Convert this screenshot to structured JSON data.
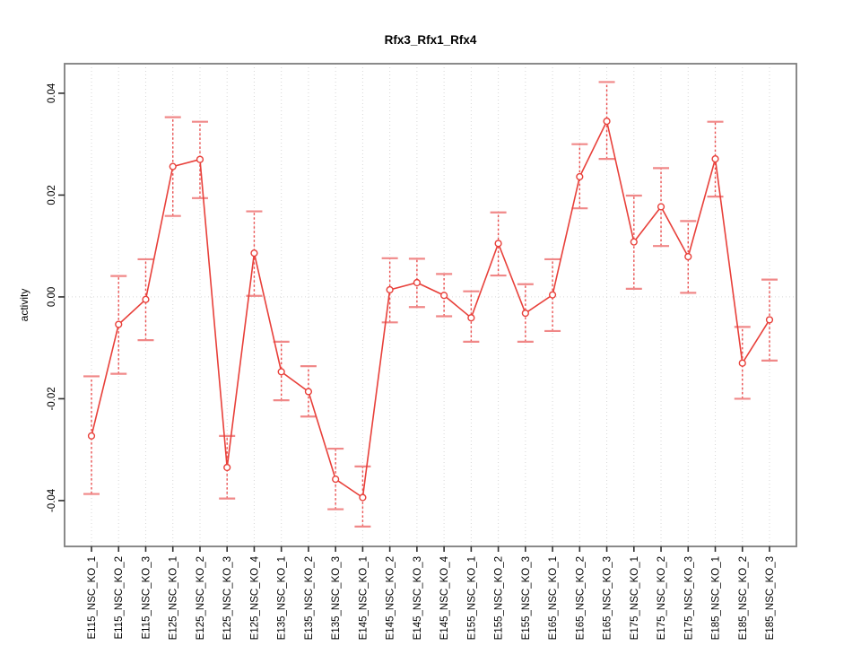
{
  "chart_data": {
    "type": "line",
    "title": "Rfx3_Rfx1_Rfx4",
    "ylabel": "activity",
    "xlabel": "",
    "marker": "open-circle",
    "error_bars": true,
    "legend": "none",
    "grid": "vertical dotted gridline per category plus dotted horizontal line at 0",
    "ylim": [
      -0.049,
      0.0458
    ],
    "yticks": [
      -0.04,
      -0.02,
      0,
      0.02,
      0.04
    ],
    "categories": [
      "E115_NSC_KO_1",
      "E115_NSC_KO_2",
      "E115_NSC_KO_3",
      "E125_NSC_KO_1",
      "E125_NSC_KO_2",
      "E125_NSC_KO_3",
      "E125_NSC_KO_4",
      "E135_NSC_KO_1",
      "E135_NSC_KO_2",
      "E135_NSC_KO_3",
      "E145_NSC_KO_1",
      "E145_NSC_KO_2",
      "E145_NSC_KO_3",
      "E145_NSC_KO_4",
      "E155_NSC_KO_1",
      "E155_NSC_KO_2",
      "E155_NSC_KO_3",
      "E165_NSC_KO_1",
      "E165_NSC_KO_2",
      "E165_NSC_KO_3",
      "E175_NSC_KO_1",
      "E175_NSC_KO_2",
      "E175_NSC_KO_3",
      "E185_NSC_KO_1",
      "E185_NSC_KO_2",
      "E185_NSC_KO_3"
    ],
    "series": [
      {
        "name": "activity",
        "values": [
          -0.0273,
          -0.0054,
          -0.0005,
          0.0256,
          0.027,
          -0.0335,
          0.0086,
          -0.0147,
          -0.0186,
          -0.0358,
          -0.0394,
          0.0014,
          0.0028,
          0.0003,
          -0.0041,
          0.0105,
          -0.0032,
          0.0004,
          0.0236,
          0.0345,
          0.0108,
          0.0177,
          0.0079,
          0.0271,
          -0.013,
          -0.0045
        ],
        "err_low": [
          -0.0387,
          -0.0151,
          -0.0085,
          0.0159,
          0.0194,
          -0.0396,
          0.0002,
          -0.0203,
          -0.0235,
          -0.0417,
          -0.0451,
          -0.005,
          -0.002,
          -0.0038,
          -0.0088,
          0.0042,
          -0.0088,
          -0.0067,
          0.0174,
          0.0271,
          0.0016,
          0.01,
          0.0008,
          0.0197,
          -0.02,
          -0.0125
        ],
        "err_high": [
          -0.0156,
          0.0041,
          0.0074,
          0.0353,
          0.0344,
          -0.0273,
          0.0168,
          -0.0088,
          -0.0136,
          -0.0298,
          -0.0333,
          0.0076,
          0.0075,
          0.0045,
          0.0011,
          0.0166,
          0.0025,
          0.0074,
          0.03,
          0.0422,
          0.0199,
          0.0253,
          0.0149,
          0.0344,
          -0.0059,
          0.0034
        ]
      }
    ],
    "colors": {
      "line": "#e8403a",
      "point_fill": "#ffffff",
      "error_bar": "#ea5050",
      "error_cap": "#f08888",
      "grid": "#d7d7d7",
      "frame": "#7e7e7e",
      "tick": "#2f2f2f",
      "text": "#000000"
    }
  }
}
